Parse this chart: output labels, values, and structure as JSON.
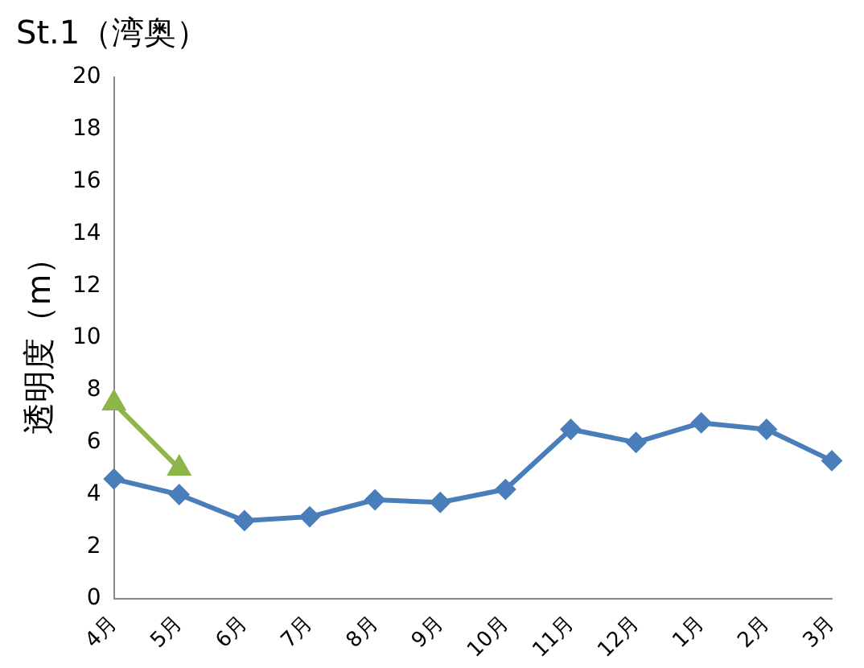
{
  "chart_data": {
    "type": "line",
    "title": "St.1（湾奥）",
    "ylabel": "透明度（m）",
    "categories": [
      "4月",
      "5月",
      "6月",
      "7月",
      "8月",
      "9月",
      "10月",
      "11月",
      "12月",
      "1月",
      "2月",
      "3月"
    ],
    "series": [
      {
        "color": "#4a7ebb",
        "marker": "diamond",
        "values": [
          4.6,
          4.0,
          3.0,
          3.15,
          3.8,
          3.7,
          4.2,
          6.5,
          6.0,
          6.75,
          6.5,
          5.3
        ]
      },
      {
        "color": "#8db54a",
        "marker": "triangle",
        "values": [
          7.5,
          5.0,
          null,
          null,
          null,
          null,
          null,
          null,
          null,
          null,
          null,
          null
        ]
      }
    ],
    "ylim": [
      0,
      20
    ],
    "yticks": [
      0,
      2,
      4,
      6,
      8,
      10,
      12,
      14,
      16,
      18,
      20
    ],
    "grid": false,
    "legend": false,
    "line_style": "solid"
  }
}
